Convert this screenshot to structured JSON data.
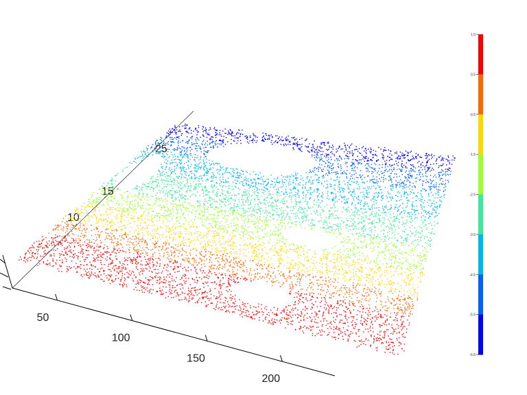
{
  "chart_data": {
    "type": "scatter",
    "variant": "3d-point-cloud",
    "title": "",
    "xlabel": "",
    "ylabel": "",
    "zlabel": "",
    "x_ticks": [
      "50",
      "100",
      "150",
      "200"
    ],
    "y_ticks": [
      "10",
      "15",
      "25"
    ],
    "xlim": [
      20,
      235
    ],
    "ylim": [
      5,
      30
    ],
    "grid": false,
    "colormap": "jet",
    "colorbar": {
      "placement": "right",
      "ticks": [
        "1.5",
        "0.5",
        "-0.5",
        "-1.5",
        "-2.5",
        "-3.5",
        "-4.5",
        "-5.5",
        "-6.5"
      ],
      "colors": [
        "#ff0000",
        "#ff6600",
        "#ffd700",
        "#9cff2f",
        "#3ee89a",
        "#00b8ea",
        "#0060ff",
        "#0000ff"
      ]
    },
    "bands": [
      {
        "z_range": [
          0.5,
          1.5
        ],
        "color": "#ff0000",
        "y_range": [
          5,
          10
        ]
      },
      {
        "z_range": [
          -0.5,
          0.5
        ],
        "color": "#ff6600",
        "y_range": [
          10,
          12.5
        ]
      },
      {
        "z_range": [
          -1.5,
          -0.5
        ],
        "color": "#ffd700",
        "y_range": [
          12.5,
          15.5
        ]
      },
      {
        "z_range": [
          -2.5,
          -1.5
        ],
        "color": "#9cff2f",
        "y_range": [
          15.5,
          18.5
        ]
      },
      {
        "z_range": [
          -3.5,
          -2.5
        ],
        "color": "#3ee89a",
        "y_range": [
          18.5,
          22
        ]
      },
      {
        "z_range": [
          -4.5,
          -3.5
        ],
        "color": "#00b8ea",
        "y_range": [
          22,
          25.5
        ]
      },
      {
        "z_range": [
          -5.5,
          -4.5
        ],
        "color": "#0060ff",
        "y_range": [
          25.5,
          28
        ]
      },
      {
        "z_range": [
          -6.5,
          -5.5
        ],
        "color": "#0000ff",
        "y_range": [
          28,
          30
        ]
      }
    ],
    "gaps": [
      {
        "x_center": 100,
        "y_center": 26.5,
        "rx": 38,
        "ry": 2.2
      },
      {
        "x_center": 160,
        "y_center": 17,
        "rx": 18,
        "ry": 1.2
      },
      {
        "x_center": 32,
        "y_center": 21.5,
        "rx": 10,
        "ry": 3
      },
      {
        "x_center": 150,
        "y_center": 8.5,
        "rx": 18,
        "ry": 1.5
      }
    ]
  }
}
